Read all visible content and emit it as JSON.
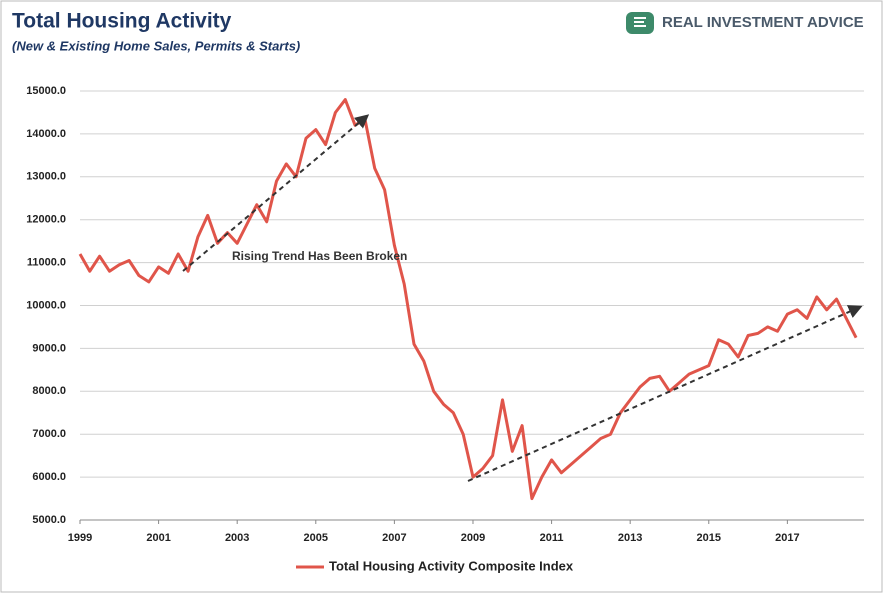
{
  "chart_data": {
    "type": "line",
    "title": "Total Housing Activity",
    "subtitle": "(New & Existing Home Sales, Permits & Starts)",
    "brand": "REAL INVESTMENT ADVICE",
    "annotation": "Rising Trend Has Been Broken",
    "x": [
      1999,
      1999.25,
      1999.5,
      1999.75,
      2000,
      2000.25,
      2000.5,
      2000.75,
      2001,
      2001.25,
      2001.5,
      2001.75,
      2002,
      2002.25,
      2002.5,
      2002.75,
      2003,
      2003.25,
      2003.5,
      2003.75,
      2004,
      2004.25,
      2004.5,
      2004.75,
      2005,
      2005.25,
      2005.5,
      2005.75,
      2006,
      2006.25,
      2006.5,
      2006.75,
      2007,
      2007.25,
      2007.5,
      2007.75,
      2008,
      2008.25,
      2008.5,
      2008.75,
      2009,
      2009.25,
      2009.5,
      2009.75,
      2010,
      2010.25,
      2010.5,
      2010.75,
      2011,
      2011.25,
      2011.5,
      2011.75,
      2012,
      2012.25,
      2012.5,
      2012.75,
      2013,
      2013.25,
      2013.5,
      2013.75,
      2014,
      2014.25,
      2014.5,
      2014.75,
      2015,
      2015.25,
      2015.5,
      2015.75,
      2016,
      2016.25,
      2016.5,
      2016.75,
      2017,
      2017.25,
      2017.5,
      2017.75,
      2018,
      2018.25,
      2018.5,
      2018.75
    ],
    "series": [
      {
        "name": "Total Housing Activity Composite Index",
        "color": "#e0554a",
        "values": [
          11200,
          10800,
          11150,
          10800,
          10950,
          11050,
          10700,
          10550,
          10900,
          10750,
          11200,
          10800,
          11600,
          12100,
          11450,
          11700,
          11450,
          11900,
          12350,
          11950,
          12900,
          13300,
          13000,
          13900,
          14100,
          13750,
          14500,
          14800,
          14200,
          14350,
          13200,
          12700,
          11400,
          10500,
          9100,
          8700,
          8000,
          7700,
          7500,
          7000,
          6000,
          6200,
          6500,
          7800,
          6600,
          7200,
          5500,
          6000,
          6400,
          6100,
          6300,
          6500,
          6700,
          6900,
          7000,
          7500,
          7800,
          8100,
          8300,
          8350,
          8000,
          8200,
          8400,
          8500,
          8600,
          9200,
          9100,
          8800,
          9300,
          9350,
          9500,
          9400,
          9800,
          9900,
          9700,
          10200,
          9900,
          10150,
          9700,
          9250
        ]
      }
    ],
    "xlim": [
      1999,
      2018.95
    ],
    "xticks": [
      1999,
      2001,
      2003,
      2005,
      2007,
      2009,
      2011,
      2013,
      2015,
      2017
    ],
    "ylim": [
      5000,
      15000
    ],
    "yticks": [
      {
        "value": 5000,
        "label": "5000.0"
      },
      {
        "value": 6000,
        "label": "6000.0"
      },
      {
        "value": 7000,
        "label": "7000.0"
      },
      {
        "value": 8000,
        "label": "8000.0"
      },
      {
        "value": 9000,
        "label": "9000.0"
      },
      {
        "value": 10000,
        "label": "10000.0"
      },
      {
        "value": 11000,
        "label": "11000.0"
      },
      {
        "value": 12000,
        "label": "12000.0"
      },
      {
        "value": 13000,
        "label": "13000.0"
      },
      {
        "value": 14000,
        "label": "14000.0"
      },
      {
        "value": 15000,
        "label": "15000.0"
      }
    ],
    "grid": true
  }
}
